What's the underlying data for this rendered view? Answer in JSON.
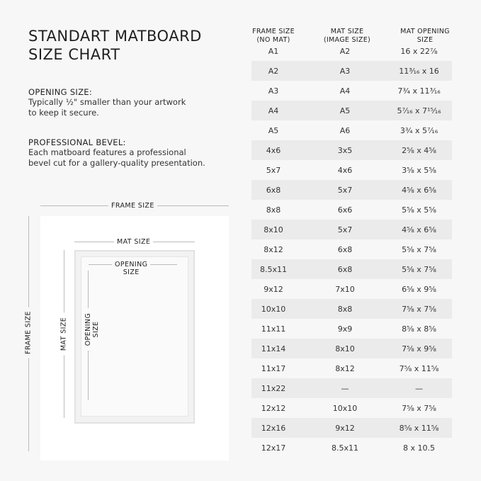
{
  "title": [
    "STANDART MATBOARD",
    "SIZE CHART"
  ],
  "opening": {
    "heading": "OPENING SIZE:",
    "text": [
      "Typically ½\" smaller than your artwork",
      "to keep it secure."
    ]
  },
  "bevel": {
    "heading": "PROFESSIONAL BEVEL:",
    "text": [
      "Each matboard features a professional",
      "bevel cut for a gallery-quality presentation."
    ]
  },
  "diagram": {
    "frame": "FRAME SIZE",
    "mat": "MAT SIZE",
    "opening": [
      "OPENING",
      "SIZE"
    ]
  },
  "table": {
    "headers": [
      [
        "FRAME SIZE",
        "(NO MAT)"
      ],
      [
        "MAT SIZE",
        "(IMAGE SIZE)"
      ],
      [
        "MAT OPENING",
        "SIZE"
      ]
    ],
    "rows": [
      [
        "A1",
        "A2",
        "16 x 22⅞"
      ],
      [
        "A2",
        "A3",
        "11³⁄₁₆ x 16"
      ],
      [
        "A3",
        "A4",
        "7¾ x 11³⁄₁₆"
      ],
      [
        "A4",
        "A5",
        "5⁷⁄₁₆ x 7¹⁵⁄₁₆"
      ],
      [
        "A5",
        "A6",
        "3¾ x 5⁷⁄₁₆"
      ],
      [
        "4x6",
        "3x5",
        "2⅝ x 4⅝"
      ],
      [
        "5x7",
        "4x6",
        "3⅝ x 5⅝"
      ],
      [
        "6x8",
        "5x7",
        "4⅝ x 6⅝"
      ],
      [
        "8x8",
        "6x6",
        "5⅝ x 5⅝"
      ],
      [
        "8x10",
        "5x7",
        "4⅝ x 6⅝"
      ],
      [
        "8x12",
        "6x8",
        "5⅝ x 7⅝"
      ],
      [
        "8.5x11",
        "6x8",
        "5⅝ x 7⅝"
      ],
      [
        "9x12",
        "7x10",
        "6⅝ x 9⅝"
      ],
      [
        "10x10",
        "8x8",
        "7⅝ x 7⅝"
      ],
      [
        "11x11",
        "9x9",
        "8⅝ x 8⅝"
      ],
      [
        "11x14",
        "8x10",
        "7⅝ x 9⅝"
      ],
      [
        "11x17",
        "8x12",
        "7⅝ x 11⅝"
      ],
      [
        "11x22",
        "—",
        "—"
      ],
      [
        "12x12",
        "10x10",
        "7⅝ x 7⅝"
      ],
      [
        "12x16",
        "9x12",
        "8⅝ x 11⅝"
      ],
      [
        "12x17",
        "8.5x11",
        "8 x 10.5"
      ]
    ]
  }
}
